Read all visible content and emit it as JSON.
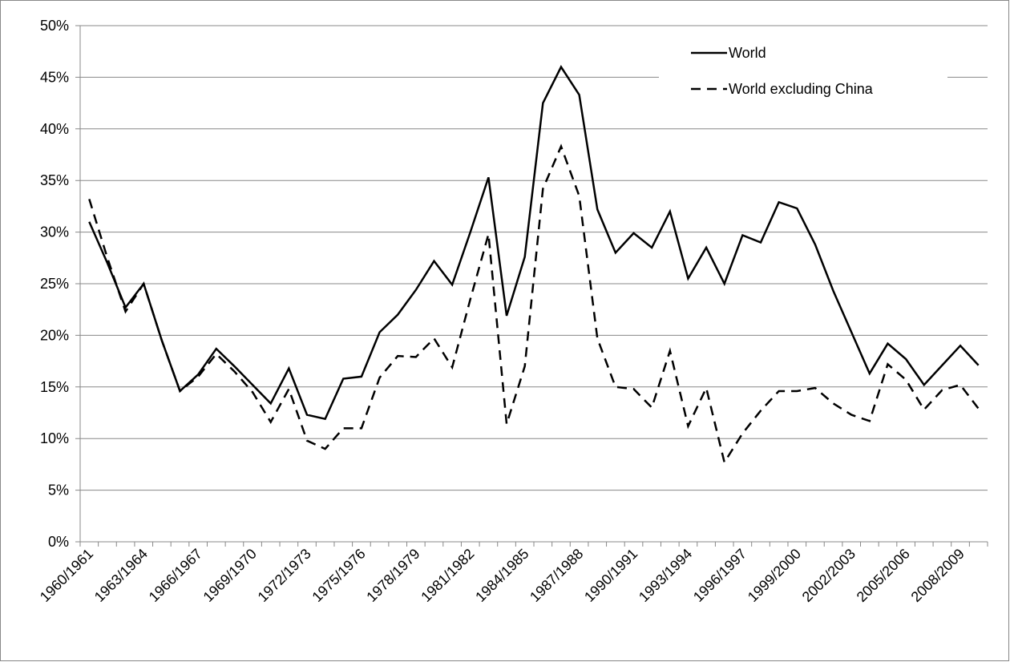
{
  "chart_data": {
    "type": "line",
    "categories": [
      "1960/1961",
      null,
      null,
      "1963/1964",
      null,
      null,
      "1966/1967",
      null,
      null,
      "1969/1970",
      null,
      null,
      "1972/1973",
      null,
      null,
      "1975/1976",
      null,
      null,
      "1978/1979",
      null,
      null,
      "1981/1982",
      null,
      null,
      "1984/1985",
      null,
      null,
      "1987/1988",
      null,
      null,
      "1990/1991",
      null,
      null,
      "1993/1994",
      null,
      null,
      "1996/1997",
      null,
      null,
      "1999/2000",
      null,
      null,
      "2002/2003",
      null,
      null,
      "2005/2006",
      null,
      null,
      "2008/2009",
      null
    ],
    "series": [
      {
        "name": "World",
        "color": "#000000",
        "line_style": "solid",
        "values": [
          31,
          27,
          22.7,
          25,
          19.5,
          14.6,
          16.2,
          18.7,
          17,
          15.2,
          13.4,
          16.8,
          12.3,
          11.9,
          15.8,
          16,
          20.3,
          22,
          24.4,
          27.2,
          24.9,
          30,
          35.3,
          21.9,
          27.6,
          42.5,
          46,
          43.3,
          32.2,
          28,
          29.9,
          28.5,
          32,
          25.5,
          28.5,
          25,
          29.7,
          29,
          32.9,
          32.3,
          28.8,
          24.3,
          20.3,
          16.3,
          19.2,
          17.7,
          15.2,
          17.1,
          19,
          17.1
        ]
      },
      {
        "name": "World excluding China",
        "color": "#000000",
        "line_style": "dashed",
        "values": [
          33.2,
          27.5,
          22.3,
          25,
          19.5,
          14.6,
          16,
          18.2,
          16.5,
          14.5,
          11.6,
          14.8,
          9.8,
          9,
          11,
          11,
          15.9,
          18,
          17.9,
          19.7,
          16.9,
          23.5,
          29.8,
          11.4,
          17,
          34.2,
          38.3,
          33.5,
          19.7,
          15,
          14.8,
          13,
          18.5,
          11.2,
          14.9,
          7.7,
          10.5,
          12.7,
          14.6,
          14.6,
          14.9,
          13.4,
          12.3,
          11.7,
          17.2,
          15.7,
          12.8,
          14.7,
          15.2,
          12.9
        ]
      }
    ],
    "ylim": [
      0,
      50
    ],
    "yticks": [
      {
        "value": 0,
        "label": "0%"
      },
      {
        "value": 5,
        "label": "5%"
      },
      {
        "value": 10,
        "label": "10%"
      },
      {
        "value": 15,
        "label": "15%"
      },
      {
        "value": 20,
        "label": "20%"
      },
      {
        "value": 25,
        "label": "25%"
      },
      {
        "value": 30,
        "label": "30%"
      },
      {
        "value": 35,
        "label": "35%"
      },
      {
        "value": 40,
        "label": "40%"
      },
      {
        "value": 45,
        "label": "45%"
      },
      {
        "value": 50,
        "label": "50%"
      }
    ],
    "grid": true,
    "legend": "upper right"
  }
}
